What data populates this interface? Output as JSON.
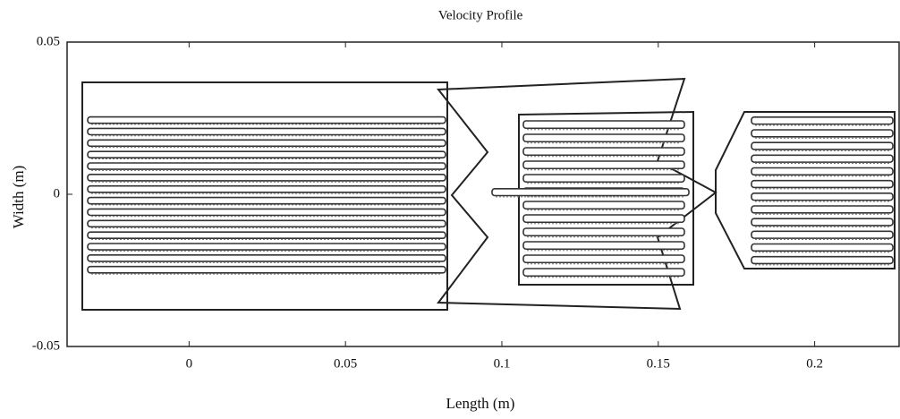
{
  "chart_data": {
    "type": "flow-field",
    "title": "Velocity Profile",
    "x_label": "Length (m)",
    "y_label": "Width (m)",
    "xlim": [
      -0.039,
      0.227
    ],
    "ylim": [
      -0.05,
      0.05
    ],
    "xticks": [
      0,
      0.05,
      0.1,
      0.15,
      0.2
    ],
    "yticks": [
      -0.05,
      0,
      0.05
    ]
  }
}
